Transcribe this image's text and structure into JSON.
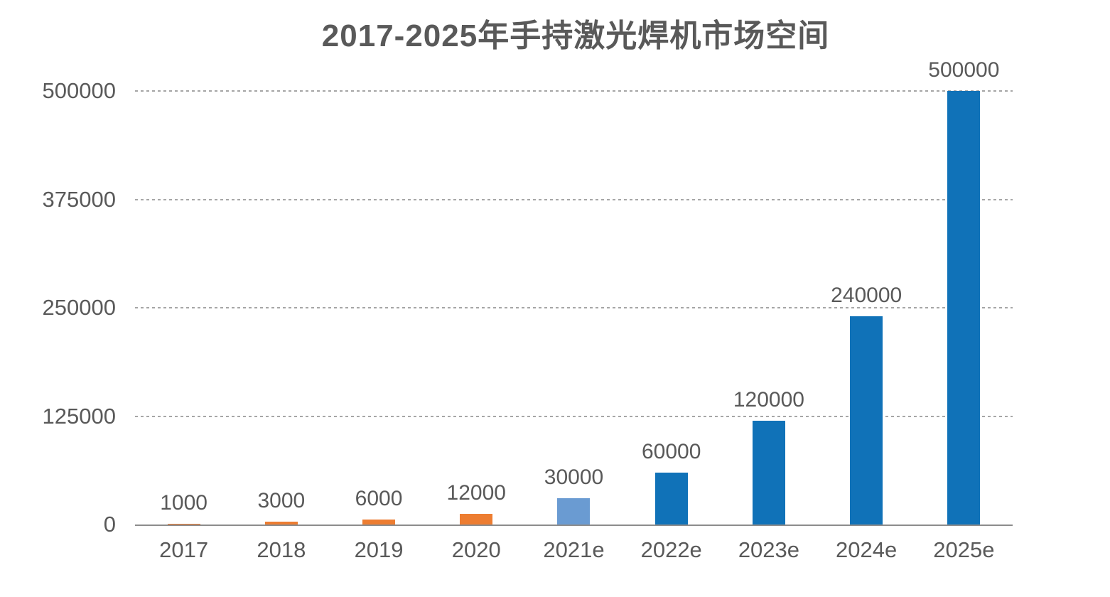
{
  "chart_data": {
    "type": "bar",
    "title": "2017-2025年手持激光焊机市场空间",
    "categories": [
      "2017",
      "2018",
      "2019",
      "2020",
      "2021e",
      "2022e",
      "2023e",
      "2024e",
      "2025e"
    ],
    "values": [
      1000,
      3000,
      6000,
      12000,
      30000,
      60000,
      120000,
      240000,
      500000
    ],
    "data_labels": [
      "1000",
      "3000",
      "6000",
      "12000",
      "30000",
      "60000",
      "120000",
      "240000",
      "500000"
    ],
    "bar_colors": [
      "#ED7D31",
      "#ED7D31",
      "#ED7D31",
      "#ED7D31",
      "#6A9BD2",
      "#1072B8",
      "#1072B8",
      "#1072B8",
      "#1072B8"
    ],
    "xlabel": "",
    "ylabel": "",
    "ylim": [
      0,
      500000
    ],
    "yticks": [
      0,
      125000,
      250000,
      375000,
      500000
    ],
    "ytick_labels": [
      "0",
      "125000",
      "250000",
      "375000",
      "500000"
    ],
    "grid": "horizontal-dotted",
    "legend_position": "none"
  },
  "colors": {
    "title_text": "#595959",
    "tick_text": "#595959",
    "data_label_text": "#595959",
    "gridline": "#A6A6A6",
    "axis_line": "#8C8C8C",
    "background": "#FFFFFF",
    "series_orange": "#ED7D31",
    "series_light_blue": "#6A9BD2",
    "series_dark_blue": "#1072B8"
  }
}
